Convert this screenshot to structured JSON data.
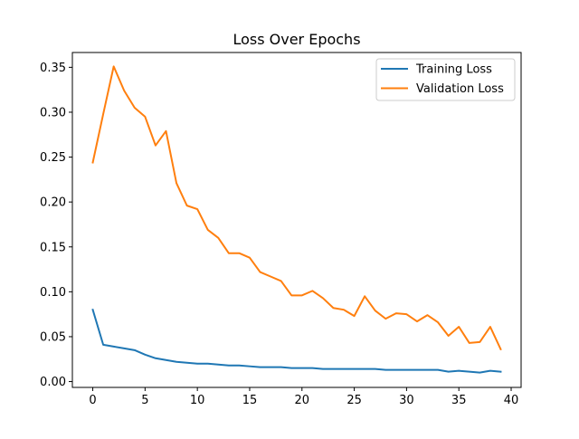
{
  "chart_data": {
    "type": "line",
    "title": "Loss Over Epochs",
    "xlabel": "",
    "ylabel": "",
    "xlim": [
      -1.95,
      40.95
    ],
    "ylim": [
      -0.0065,
      0.3665
    ],
    "x_ticks": [
      0,
      5,
      10,
      15,
      20,
      25,
      30,
      35,
      40
    ],
    "x_tick_labels": [
      "0",
      "5",
      "10",
      "15",
      "20",
      "25",
      "30",
      "35",
      "40"
    ],
    "y_ticks": [
      0.0,
      0.05,
      0.1,
      0.15,
      0.2,
      0.25,
      0.3,
      0.35
    ],
    "y_tick_labels": [
      "0.00",
      "0.05",
      "0.10",
      "0.15",
      "0.20",
      "0.25",
      "0.30",
      "0.35"
    ],
    "grid": false,
    "legend_position": "top-right",
    "x": [
      0,
      1,
      2,
      3,
      4,
      5,
      6,
      7,
      8,
      9,
      10,
      11,
      12,
      13,
      14,
      15,
      16,
      17,
      18,
      19,
      20,
      21,
      22,
      23,
      24,
      25,
      26,
      27,
      28,
      29,
      30,
      31,
      32,
      33,
      34,
      35,
      36,
      37,
      38,
      39
    ],
    "series": [
      {
        "name": "Training Loss",
        "color": "#1f77b4",
        "values": [
          0.08,
          0.041,
          0.039,
          0.037,
          0.035,
          0.03,
          0.026,
          0.024,
          0.022,
          0.021,
          0.02,
          0.02,
          0.019,
          0.018,
          0.018,
          0.017,
          0.016,
          0.016,
          0.016,
          0.015,
          0.015,
          0.015,
          0.014,
          0.014,
          0.014,
          0.014,
          0.014,
          0.014,
          0.013,
          0.013,
          0.013,
          0.013,
          0.013,
          0.013,
          0.011,
          0.012,
          0.011,
          0.01,
          0.012,
          0.011
        ]
      },
      {
        "name": "Validation Loss",
        "color": "#ff7f0e",
        "values": [
          0.244,
          0.298,
          0.351,
          0.324,
          0.305,
          0.295,
          0.263,
          0.279,
          0.221,
          0.196,
          0.192,
          0.169,
          0.16,
          0.143,
          0.143,
          0.138,
          0.122,
          0.117,
          0.112,
          0.096,
          0.096,
          0.101,
          0.093,
          0.082,
          0.08,
          0.073,
          0.095,
          0.079,
          0.07,
          0.076,
          0.075,
          0.067,
          0.074,
          0.066,
          0.051,
          0.061,
          0.043,
          0.044,
          0.061,
          0.036
        ]
      }
    ]
  }
}
